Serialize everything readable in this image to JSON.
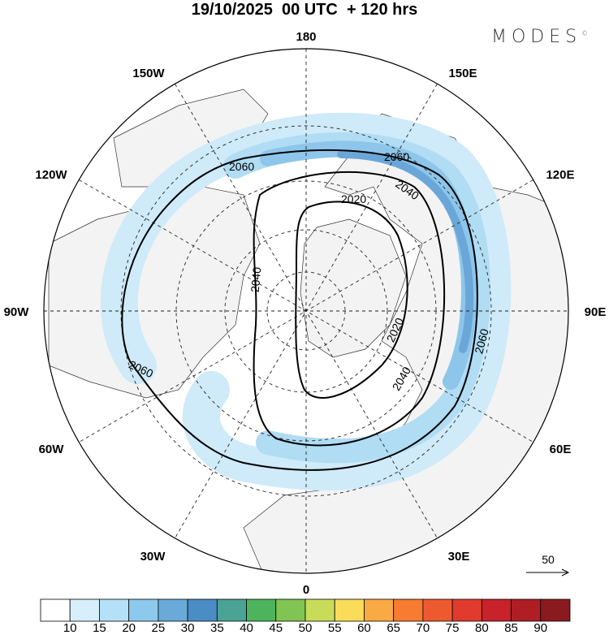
{
  "title": "19/10/2025  00 UTC  + 120 hrs",
  "logo": {
    "text": "MODES",
    "mark": "©"
  },
  "map": {
    "projection": "north-polar-stereographic",
    "meridian_labels": {
      "m180": "180",
      "m150e": "150E",
      "m120e": "120E",
      "m90e": "90E",
      "m60e": "60E",
      "m30e": "30E",
      "m0": "0",
      "m30w": "30W",
      "m60w": "60W",
      "m90w": "90W",
      "m120w": "120W",
      "m150w": "150W"
    },
    "contour_labels": [
      "2060",
      "2060",
      "2060",
      "2060",
      "2040",
      "2040",
      "2040",
      "2020",
      "2020"
    ],
    "vector_scale": {
      "label": "50"
    }
  },
  "colorbar": {
    "levels": [
      "10",
      "15",
      "20",
      "25",
      "30",
      "35",
      "40",
      "45",
      "50",
      "55",
      "60",
      "65",
      "70",
      "75",
      "80",
      "85",
      "90"
    ],
    "colors": [
      "#ffffff",
      "#d6effb",
      "#b4e1f7",
      "#8dc9ec",
      "#6aaad9",
      "#4a8dc4",
      "#4aa394",
      "#4db35c",
      "#80c452",
      "#c9dc5a",
      "#fadc5a",
      "#f9aa45",
      "#f77b30",
      "#ee5a30",
      "#e13b2f",
      "#c8222b",
      "#ae1e24",
      "#8b1a1e"
    ]
  }
}
